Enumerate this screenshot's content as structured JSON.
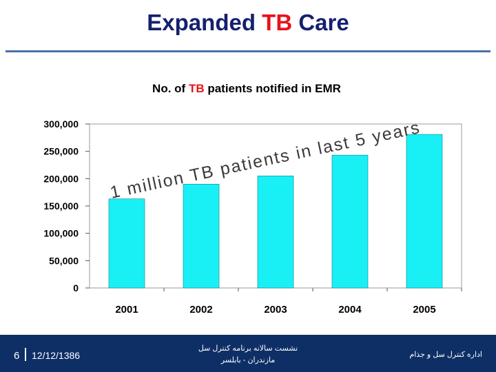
{
  "slide": {
    "title_part1": "Expanded ",
    "title_highlight": "TB",
    "title_part2": " Care"
  },
  "colors": {
    "title": "#14206e",
    "highlight": "#e8121b",
    "bar_fill": "#19f0f6",
    "footer": "#0e2f66"
  },
  "chart_data": {
    "type": "bar",
    "title_part1": "No. of ",
    "title_highlight": "TB",
    "title_part2": " patients notified in EMR",
    "categories": [
      "2001",
      "2002",
      "2003",
      "2004",
      "2005"
    ],
    "values": [
      163000,
      190000,
      205000,
      243000,
      281000
    ],
    "ylim": [
      0,
      300000
    ],
    "yticks": [
      0,
      50000,
      100000,
      150000,
      200000,
      250000,
      300000
    ],
    "ytick_labels": [
      "0",
      "50,000",
      "100,000",
      "150,000",
      "200,000",
      "250,000",
      "300,000"
    ],
    "grid": false,
    "annotation": "1 million TB patients in last 5 years"
  },
  "footer": {
    "page_number": "6",
    "date": "12/12/1386",
    "center_line1": "نشست سالانه برنامه کنترل سل",
    "center_line2": "مازندران - بابلسر",
    "right_text": "اداره کنترل سل و جذام"
  }
}
